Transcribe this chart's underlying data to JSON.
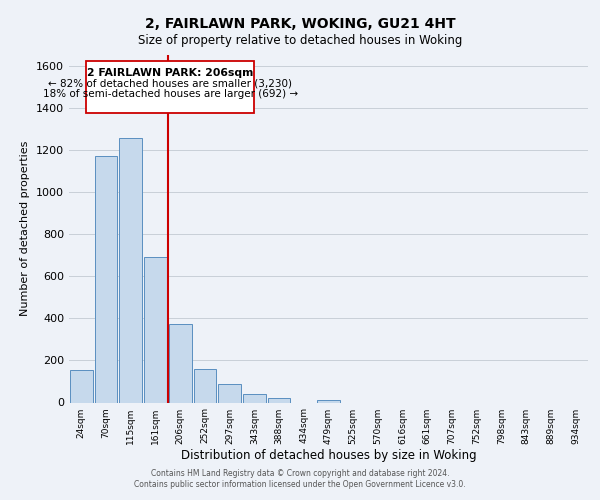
{
  "title_line1": "2, FAIRLAWN PARK, WOKING, GU21 4HT",
  "title_line2": "Size of property relative to detached houses in Woking",
  "xlabel": "Distribution of detached houses by size in Woking",
  "ylabel": "Number of detached properties",
  "categories": [
    "24sqm",
    "70sqm",
    "115sqm",
    "161sqm",
    "206sqm",
    "252sqm",
    "297sqm",
    "343sqm",
    "388sqm",
    "434sqm",
    "479sqm",
    "525sqm",
    "570sqm",
    "616sqm",
    "661sqm",
    "707sqm",
    "752sqm",
    "798sqm",
    "843sqm",
    "889sqm",
    "934sqm"
  ],
  "values": [
    152,
    1170,
    1255,
    690,
    375,
    160,
    90,
    38,
    22,
    0,
    12,
    0,
    0,
    0,
    0,
    0,
    0,
    0,
    0,
    0,
    0
  ],
  "bar_color": "#c6d9ec",
  "bar_edge_color": "#5a8fc0",
  "reference_line_color": "#cc0000",
  "annotation_title": "2 FAIRLAWN PARK: 206sqm",
  "annotation_line1": "← 82% of detached houses are smaller (3,230)",
  "annotation_line2": "18% of semi-detached houses are larger (692) →",
  "annotation_box_edge_color": "#cc0000",
  "ylim": [
    0,
    1650
  ],
  "yticks": [
    0,
    200,
    400,
    600,
    800,
    1000,
    1200,
    1400,
    1600
  ],
  "footer_line1": "Contains HM Land Registry data © Crown copyright and database right 2024.",
  "footer_line2": "Contains public sector information licensed under the Open Government Licence v3.0.",
  "bg_color": "#eef2f8",
  "plot_bg_color": "#eef2f8"
}
